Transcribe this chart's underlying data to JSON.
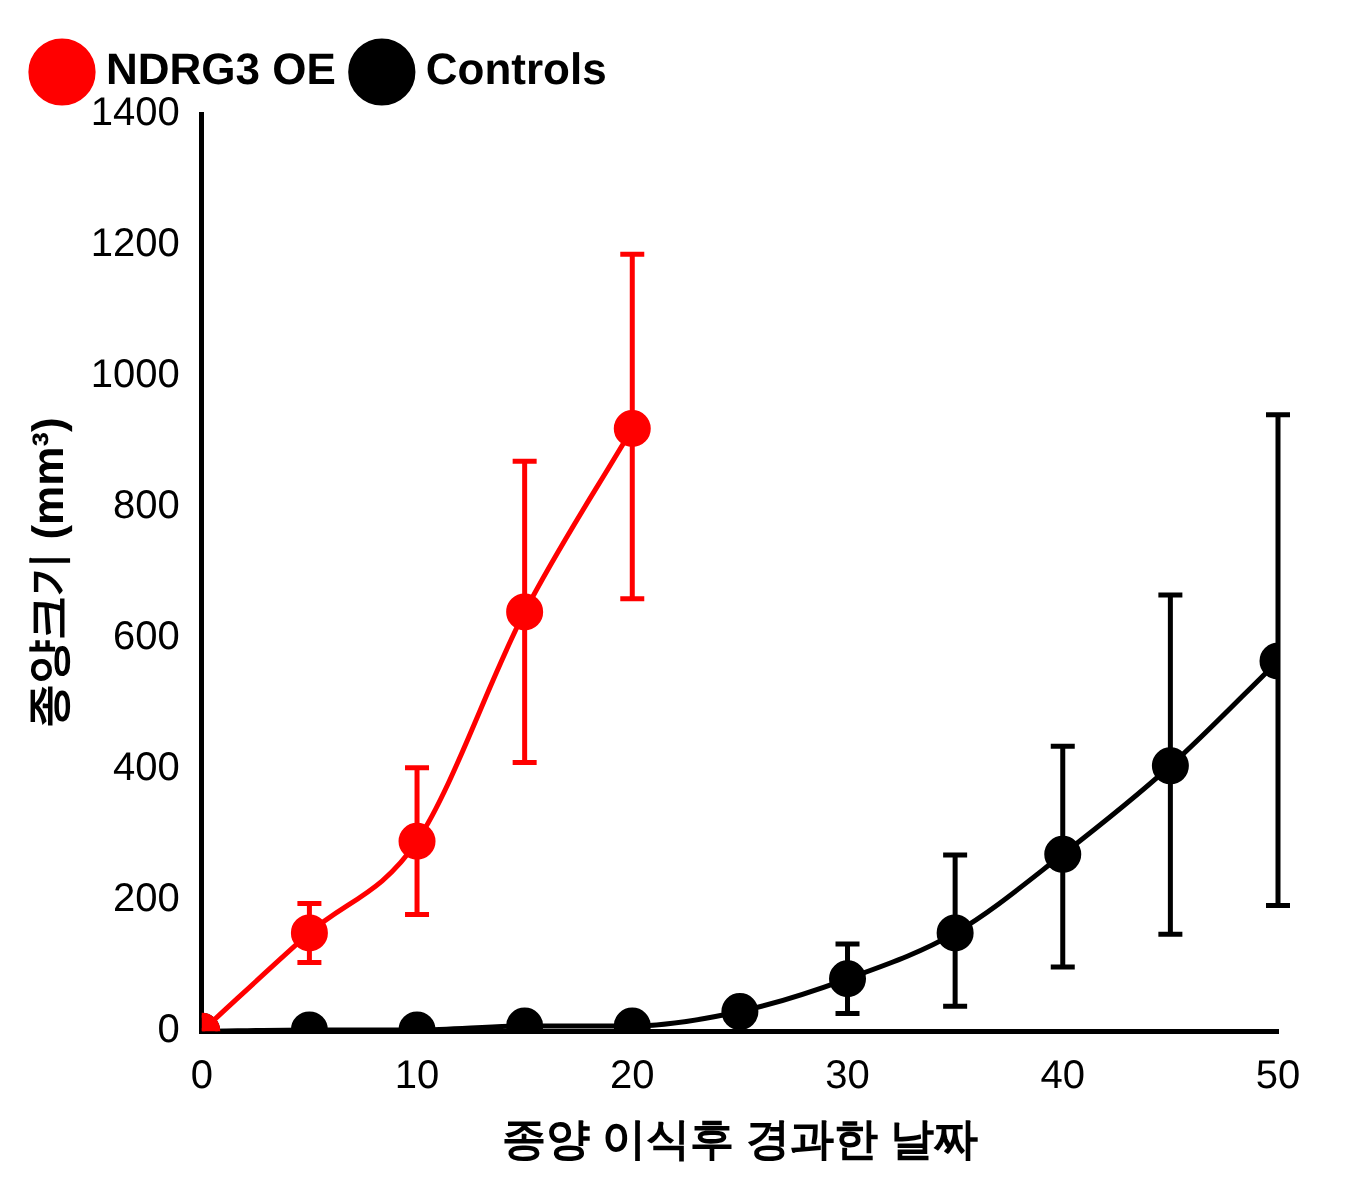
{
  "chart_data": {
    "type": "line",
    "xlabel": "종양 이식후 경과한 날짜",
    "ylabel": "종양크기 (mm³)",
    "xlim": [
      0,
      50
    ],
    "xticks": [
      0,
      10,
      20,
      30,
      40,
      50
    ],
    "ylim": [
      0,
      1400
    ],
    "yticks": [
      0,
      200,
      400,
      600,
      800,
      1000,
      1200,
      1400
    ],
    "grid": false,
    "legend": "top left",
    "marker": "circle",
    "line_style": "solid",
    "series": [
      {
        "name": "NDRG3 OE",
        "color": "#ff0000",
        "x": [
          0,
          5,
          10,
          15,
          20
        ],
        "values": [
          0,
          150,
          290,
          640,
          920
        ],
        "errors": [
          null,
          45,
          112,
          [
            410,
            870
          ],
          [
            660,
            1186
          ]
        ]
      },
      {
        "name": "Controls",
        "color": "#000000",
        "x": [
          0,
          5,
          10,
          15,
          20,
          25,
          30,
          35,
          40,
          45,
          50
        ],
        "values": [
          0,
          2,
          2,
          8,
          8,
          30,
          80,
          150,
          270,
          405,
          565
        ],
        "errors": [
          null,
          null,
          null,
          null,
          null,
          null,
          [
            27,
            133
          ],
          [
            38,
            269
          ],
          [
            98,
            435
          ],
          [
            148,
            666
          ],
          [
            192,
            941
          ]
        ]
      }
    ]
  }
}
